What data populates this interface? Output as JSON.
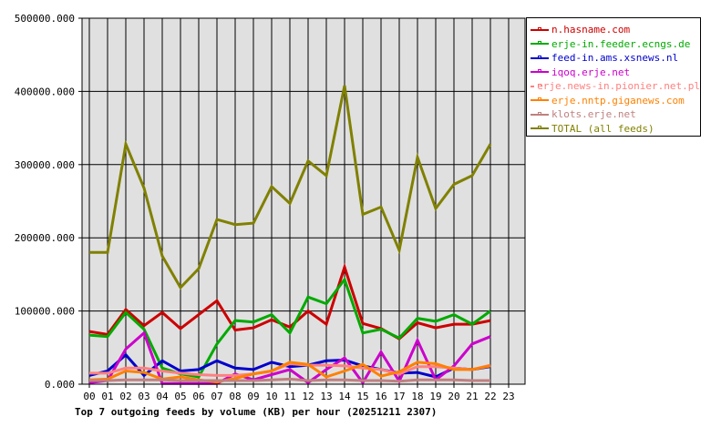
{
  "chart_data": {
    "type": "line",
    "title": "Top 7 outgoing feeds by volume (KB) per hour (20251211 2307)",
    "xlabel": "",
    "ylabel": "",
    "ylim": [
      0,
      500000
    ],
    "yticks": [
      "0.000",
      "100000.000",
      "200000.000",
      "300000.000",
      "400000.000",
      "500000.000"
    ],
    "categories": [
      "00",
      "01",
      "02",
      "03",
      "04",
      "05",
      "06",
      "07",
      "08",
      "09",
      "10",
      "11",
      "12",
      "13",
      "14",
      "15",
      "16",
      "17",
      "18",
      "19",
      "20",
      "21",
      "22",
      "23"
    ],
    "grid": true,
    "legend_position": "right",
    "series": [
      {
        "name": "n.hasname.com",
        "color": "#cc0000",
        "values": [
          72000,
          68000,
          102000,
          80000,
          98000,
          76000,
          95000,
          114000,
          74000,
          77000,
          88000,
          78000,
          100000,
          82000,
          160000,
          83000,
          76000,
          62000,
          84000,
          77000,
          82000,
          82000,
          87000
        ]
      },
      {
        "name": "erje-in.feeder.ecngs.de",
        "color": "#00aa00",
        "values": [
          67000,
          65000,
          98000,
          75000,
          22000,
          14000,
          10000,
          55000,
          87000,
          85000,
          95000,
          70000,
          119000,
          110000,
          143000,
          70000,
          75000,
          63000,
          90000,
          86000,
          95000,
          82000,
          100000
        ]
      },
      {
        "name": "feed-in.ams.xsnews.nl",
        "color": "#0000cc",
        "values": [
          12000,
          18000,
          40000,
          12000,
          32000,
          18000,
          20000,
          32000,
          22000,
          20000,
          30000,
          24000,
          26000,
          32000,
          33000,
          25000,
          20000,
          15000,
          16000,
          10000,
          22000,
          20000,
          24000
        ]
      },
      {
        "name": "iqoq.erje.net",
        "color": "#cc00cc",
        "values": [
          2000,
          5000,
          48000,
          70000,
          1000,
          1000,
          1000,
          1000,
          14000,
          6000,
          13000,
          20000,
          2000,
          20000,
          36000,
          2000,
          44000,
          4000,
          60000,
          6000,
          25000,
          55000,
          65000
        ]
      },
      {
        "name": "erje.news-in.pionier.net.pl",
        "color": "#ff8080",
        "values": [
          15000,
          15000,
          22000,
          22000,
          18000,
          15000,
          13000,
          12000,
          12000,
          14000,
          18000,
          28000,
          26000,
          26000,
          25000,
          22000,
          20000,
          14000,
          24000,
          24000,
          22000,
          20000,
          26000
        ]
      },
      {
        "name": "erje.nntp.giganews.com",
        "color": "#ff8000",
        "values": [
          6000,
          7000,
          18000,
          16000,
          7000,
          10000,
          6000,
          3000,
          8000,
          14000,
          18000,
          30000,
          27000,
          10000,
          18000,
          27000,
          11000,
          17000,
          30000,
          28000,
          20000,
          20000,
          25000
        ]
      },
      {
        "name": "klots.erje.net",
        "color": "#c08080",
        "values": [
          5000,
          5000,
          6000,
          6000,
          6000,
          5000,
          5000,
          5000,
          5000,
          5000,
          6000,
          7000,
          5000,
          6000,
          6000,
          5000,
          5000,
          4000,
          6000,
          6000,
          6000,
          5000,
          5000
        ]
      },
      {
        "name": "TOTAL (all feeds)",
        "color": "#808000",
        "values": [
          180000,
          180000,
          328000,
          268000,
          175000,
          132000,
          158000,
          225000,
          218000,
          220000,
          270000,
          247000,
          305000,
          285000,
          408000,
          232000,
          242000,
          183000,
          310000,
          240000,
          273000,
          285000,
          328000
        ]
      }
    ]
  }
}
